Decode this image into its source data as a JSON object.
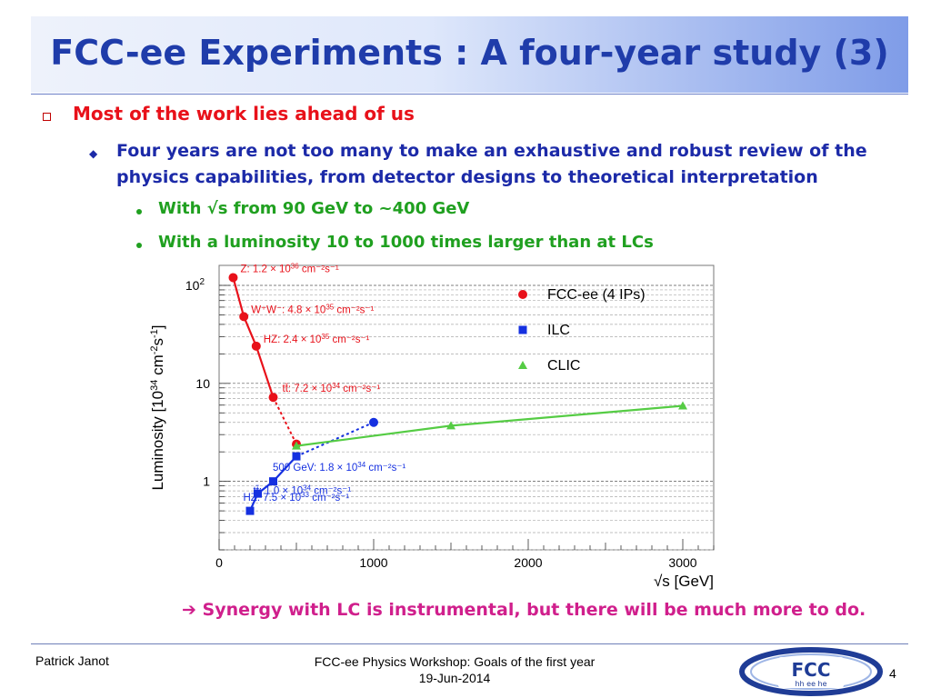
{
  "slide": {
    "title": "FCC-ee Experiments : A four-year study (3)",
    "bullet1": "Most of the work lies ahead of us",
    "bullet2": "Four years are not too many to make an exhaustive and robust review of the physics capabilities, from detector designs to theoretical interpretation",
    "bullet3a": "With √s from 90 GeV to ~400 GeV",
    "bullet3b": "With a luminosity 10 to 1000 times larger than at LCs",
    "conclusion": "Synergy with LC is instrumental, but there will be much more to do.",
    "conclusion_arrow": "➔"
  },
  "footer": {
    "author": "Patrick Janot",
    "event": "FCC-ee Physics Workshop: Goals of the first year",
    "date": "19-Jun-2014",
    "page": "4",
    "logo_text_top": "FCC",
    "logo_text_bottom": "hh ee he"
  },
  "colors": {
    "fcc": "#e8111a",
    "ilc": "#1530e0",
    "clic": "#55cc44",
    "title": "#1f3caa"
  },
  "chart_data": {
    "type": "line",
    "xlabel": "√s [GeV]",
    "ylabel": "Luminosity [10^34 cm^-2 s^-1]",
    "xlim": [
      0,
      3200
    ],
    "ylim": [
      0.2,
      160
    ],
    "yscale": "log",
    "x_ticks": [
      "0",
      "1000",
      "2000",
      "3000"
    ],
    "y_ticks": [
      "1",
      "10",
      "10²"
    ],
    "legend": [
      "FCC-ee (4 IPs)",
      "ILC",
      "CLIC"
    ],
    "legend_position": "top-right",
    "grid": "horizontal",
    "series": [
      {
        "name": "FCC-ee (4 IPs)",
        "marker": "circle",
        "points": [
          {
            "x": 91,
            "y": 120
          },
          {
            "x": 160,
            "y": 48
          },
          {
            "x": 240,
            "y": 24
          },
          {
            "x": 350,
            "y": 7.2
          },
          {
            "x": 500,
            "y": 2.4
          }
        ],
        "solid_until": 3
      },
      {
        "name": "ILC",
        "marker": "square",
        "points": [
          {
            "x": 200,
            "y": 0.5
          },
          {
            "x": 250,
            "y": 0.75
          },
          {
            "x": 350,
            "y": 1.0
          },
          {
            "x": 500,
            "y": 1.8
          },
          {
            "x": 1000,
            "y": 4.0
          }
        ],
        "solid_until": 3,
        "extra_marker": "circle"
      },
      {
        "name": "CLIC",
        "marker": "triangle",
        "points": [
          {
            "x": 500,
            "y": 2.3
          },
          {
            "x": 1500,
            "y": 3.7
          },
          {
            "x": 3000,
            "y": 5.9
          }
        ]
      }
    ],
    "annotations": [
      {
        "series": "FCC-ee (4 IPs)",
        "point": 0,
        "text": "Z: 1.2 × 10",
        "sup": "36",
        "unit": " cm⁻²s⁻¹"
      },
      {
        "series": "FCC-ee (4 IPs)",
        "point": 1,
        "text": "W⁺W⁻: 4.8 × 10",
        "sup": "35",
        "unit": " cm⁻²s⁻¹"
      },
      {
        "series": "FCC-ee (4 IPs)",
        "point": 2,
        "text": "HZ: 2.4 × 10",
        "sup": "35",
        "unit": " cm⁻²s⁻¹"
      },
      {
        "series": "FCC-ee (4 IPs)",
        "point": 3,
        "text": "tt̄: 7.2 × 10",
        "sup": "34",
        "unit": " cm⁻²s⁻¹"
      },
      {
        "series": "ILC",
        "point": 3,
        "text": "500 GeV: 1.8 × 10",
        "sup": "34",
        "unit": " cm⁻²s⁻¹"
      },
      {
        "series": "ILC",
        "point": 2,
        "text": "tt̄: 1.0 × 10",
        "sup": "34",
        "unit": " cm⁻²s⁻¹"
      },
      {
        "series": "ILC",
        "point": 1,
        "text": "HZ: 7.5 × 10",
        "sup": "33",
        "unit": " cm⁻²s⁻¹"
      }
    ]
  }
}
